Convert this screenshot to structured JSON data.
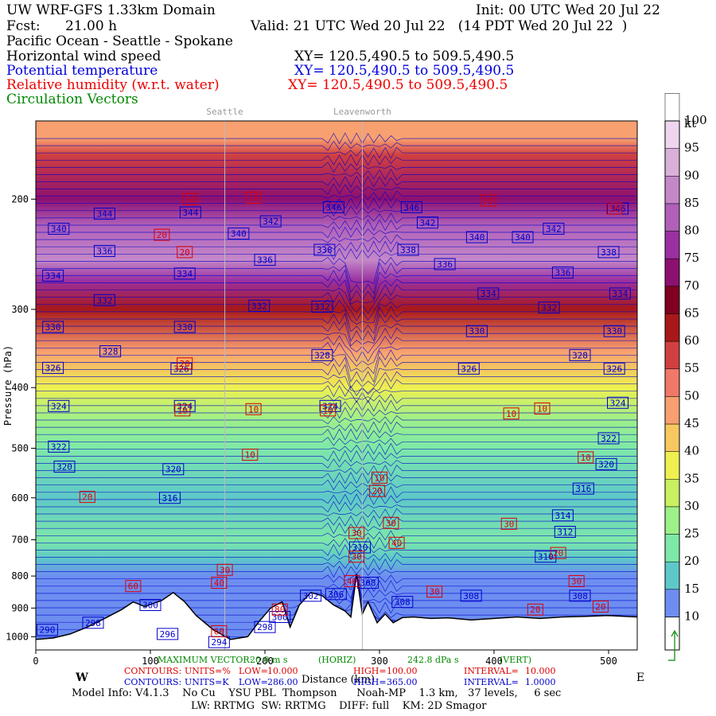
{
  "header": {
    "model": "UW WRF-GFS 1.33km Domain",
    "init": "Init: 00 UTC Wed 20 Jul 22",
    "fcst_label": "Fcst:",
    "fcst_value": "21.00 h",
    "valid": "Valid: 21 UTC Wed 20 Jul 22   (14 PDT Wed 20 Jul 22  )",
    "region": "Pacific Ocean - Seattle - Spokane",
    "field_wind": "Horizontal wind speed",
    "field_theta": "Potential temperature",
    "field_rh": "Relative humidity (w.r.t. water)",
    "field_vectors": "Circulation Vectors",
    "xy_wind": "XY= 120.5,490.5 to 509.5,490.5",
    "xy_theta": "XY= 120.5,490.5 to 509.5,490.5",
    "xy_rh": "XY= 120.5,490.5 to 509.5,490.5"
  },
  "colors": {
    "theta": "#0000cc",
    "rh": "#dd0000",
    "vectors": "#008800",
    "terrain": "#000000",
    "marker_lines": "#bbbbbb"
  },
  "chart_data": {
    "type": "heatmap",
    "subtype": "vertical cross-section",
    "x": {
      "label": "Distance (km)",
      "range": [
        0,
        525
      ],
      "ticks": [
        0,
        100,
        200,
        300,
        400,
        500
      ],
      "left_dir": "W",
      "right_dir": "E"
    },
    "y": {
      "label": "Pressure (hPa)",
      "range": [
        1050,
        150
      ],
      "scale": "log",
      "ticks": [
        200,
        300,
        400,
        500,
        600,
        700,
        800,
        900,
        1000
      ]
    },
    "markers": [
      {
        "label": "Seattle",
        "x": 165
      },
      {
        "label": "Leavenworth",
        "x": 285
      }
    ],
    "colorbar": {
      "unit": "kt",
      "levels": [
        10,
        15,
        20,
        25,
        30,
        35,
        40,
        45,
        50,
        55,
        60,
        65,
        70,
        75,
        80,
        85,
        90,
        95,
        100
      ],
      "colors": [
        "#6d8ef0",
        "#5ec8c8",
        "#7ee8a8",
        "#9ef088",
        "#c8f060",
        "#eef050",
        "#f8c860",
        "#f8a070",
        "#f07868",
        "#d04040",
        "#a81818",
        "#800020",
        "#8c1070",
        "#9a30a0",
        "#b060b8",
        "#c488c8",
        "#d8b0d8",
        "#eed6ee",
        "#ffffff"
      ]
    },
    "wind_speed_profile": {
      "pressure": [
        1000,
        900,
        800,
        750,
        700,
        600,
        500,
        450,
        400,
        350,
        300,
        270,
        250,
        220,
        200,
        170,
        160
      ],
      "speed_kt": [
        10,
        10,
        12,
        18,
        20,
        19,
        23,
        28,
        38,
        48,
        62,
        75,
        85,
        80,
        70,
        55,
        45
      ]
    },
    "terrain": {
      "x": [
        0,
        15,
        30,
        45,
        60,
        75,
        85,
        95,
        110,
        120,
        130,
        140,
        155,
        170,
        185,
        195,
        205,
        215,
        222,
        230,
        240,
        250,
        260,
        270,
        275,
        280,
        285,
        290,
        298,
        305,
        312,
        320,
        330,
        345,
        360,
        380,
        400,
        420,
        440,
        460,
        480,
        500,
        525
      ],
      "p": [
        1010,
        1005,
        990,
        965,
        935,
        905,
        880,
        895,
        875,
        850,
        880,
        925,
        975,
        1010,
        1000,
        945,
        900,
        880,
        965,
        890,
        850,
        860,
        890,
        910,
        930,
        795,
        920,
        880,
        950,
        920,
        950,
        932,
        930,
        935,
        933,
        940,
        935,
        930,
        935,
        930,
        928,
        925,
        930
      ]
    },
    "theta_contours": {
      "units": "K",
      "low": "286.00",
      "high": "365.00",
      "interval": "1.0000",
      "labels": [
        {
          "x": 10,
          "p": 975,
          "v": "290"
        },
        {
          "x": 50,
          "p": 950,
          "v": "298"
        },
        {
          "x": 100,
          "p": 890,
          "v": "300"
        },
        {
          "x": 115,
          "p": 990,
          "v": "296"
        },
        {
          "x": 160,
          "p": 1020,
          "v": "294"
        },
        {
          "x": 200,
          "p": 965,
          "v": "298"
        },
        {
          "x": 213,
          "p": 930,
          "v": "300"
        },
        {
          "x": 240,
          "p": 860,
          "v": "302"
        },
        {
          "x": 262,
          "p": 855,
          "v": "306"
        },
        {
          "x": 290,
          "p": 820,
          "v": "308"
        },
        {
          "x": 320,
          "p": 880,
          "v": "308"
        },
        {
          "x": 380,
          "p": 860,
          "v": "308"
        },
        {
          "x": 475,
          "p": 860,
          "v": "308"
        },
        {
          "x": 445,
          "p": 745,
          "v": "310"
        },
        {
          "x": 462,
          "p": 680,
          "v": "312"
        },
        {
          "x": 283,
          "p": 720,
          "v": "310"
        },
        {
          "x": 460,
          "p": 640,
          "v": "314"
        },
        {
          "x": 478,
          "p": 580,
          "v": "316"
        },
        {
          "x": 117,
          "p": 600,
          "v": "316"
        },
        {
          "x": 25,
          "p": 535,
          "v": "320"
        },
        {
          "x": 120,
          "p": 540,
          "v": "320"
        },
        {
          "x": 498,
          "p": 530,
          "v": "320"
        },
        {
          "x": 20,
          "p": 497,
          "v": "322"
        },
        {
          "x": 500,
          "p": 482,
          "v": "322"
        },
        {
          "x": 20,
          "p": 428,
          "v": "324"
        },
        {
          "x": 130,
          "p": 428,
          "v": "324"
        },
        {
          "x": 257,
          "p": 428,
          "v": "324"
        },
        {
          "x": 508,
          "p": 423,
          "v": "324"
        },
        {
          "x": 15,
          "p": 372,
          "v": "326"
        },
        {
          "x": 127,
          "p": 373,
          "v": "326"
        },
        {
          "x": 378,
          "p": 373,
          "v": "326"
        },
        {
          "x": 505,
          "p": 373,
          "v": "326"
        },
        {
          "x": 65,
          "p": 350,
          "v": "328"
        },
        {
          "x": 250,
          "p": 355,
          "v": "328"
        },
        {
          "x": 475,
          "p": 355,
          "v": "328"
        },
        {
          "x": 15,
          "p": 320,
          "v": "330"
        },
        {
          "x": 130,
          "p": 320,
          "v": "330"
        },
        {
          "x": 385,
          "p": 325,
          "v": "330"
        },
        {
          "x": 505,
          "p": 325,
          "v": "330"
        },
        {
          "x": 195,
          "p": 296,
          "v": "332"
        },
        {
          "x": 60,
          "p": 290,
          "v": "332"
        },
        {
          "x": 250,
          "p": 297,
          "v": "332"
        },
        {
          "x": 448,
          "p": 298,
          "v": "332"
        },
        {
          "x": 395,
          "p": 283,
          "v": "334"
        },
        {
          "x": 510,
          "p": 283,
          "v": "334"
        },
        {
          "x": 15,
          "p": 265,
          "v": "334"
        },
        {
          "x": 130,
          "p": 263,
          "v": "334"
        },
        {
          "x": 460,
          "p": 262,
          "v": "336"
        },
        {
          "x": 200,
          "p": 250,
          "v": "336"
        },
        {
          "x": 357,
          "p": 254,
          "v": "336"
        },
        {
          "x": 60,
          "p": 242,
          "v": "336"
        },
        {
          "x": 252,
          "p": 241,
          "v": "338"
        },
        {
          "x": 325,
          "p": 241,
          "v": "338"
        },
        {
          "x": 500,
          "p": 243,
          "v": "338"
        },
        {
          "x": 177,
          "p": 227,
          "v": "340"
        },
        {
          "x": 385,
          "p": 230,
          "v": "340"
        },
        {
          "x": 425,
          "p": 230,
          "v": "340"
        },
        {
          "x": 20,
          "p": 223,
          "v": "340"
        },
        {
          "x": 205,
          "p": 217,
          "v": "342"
        },
        {
          "x": 342,
          "p": 218,
          "v": "342"
        },
        {
          "x": 452,
          "p": 223,
          "v": "342"
        },
        {
          "x": 60,
          "p": 211,
          "v": "344"
        },
        {
          "x": 135,
          "p": 210,
          "v": "344"
        },
        {
          "x": 260,
          "p": 206,
          "v": "346"
        },
        {
          "x": 328,
          "p": 206,
          "v": "346"
        },
        {
          "x": 508,
          "p": 207,
          "v": "346"
        }
      ]
    },
    "rh_contours": {
      "units": "%",
      "low": "10.000",
      "high": "100.00",
      "interval": "10.000",
      "labels": [
        {
          "x": 135,
          "p": 200,
          "v": "10"
        },
        {
          "x": 190,
          "p": 199,
          "v": "10"
        },
        {
          "x": 395,
          "p": 201,
          "v": "10"
        },
        {
          "x": 505,
          "p": 207,
          "v": "10"
        },
        {
          "x": 110,
          "p": 228,
          "v": "20"
        },
        {
          "x": 130,
          "p": 243,
          "v": "20"
        },
        {
          "x": 130,
          "p": 366,
          "v": "20"
        },
        {
          "x": 190,
          "p": 433,
          "v": "10"
        },
        {
          "x": 128,
          "p": 435,
          "v": "10"
        },
        {
          "x": 255,
          "p": 435,
          "v": "10"
        },
        {
          "x": 415,
          "p": 440,
          "v": "10"
        },
        {
          "x": 442,
          "p": 432,
          "v": "10"
        },
        {
          "x": 187,
          "p": 512,
          "v": "10"
        },
        {
          "x": 480,
          "p": 517,
          "v": "10"
        },
        {
          "x": 300,
          "p": 557,
          "v": "10"
        },
        {
          "x": 298,
          "p": 585,
          "v": "20"
        },
        {
          "x": 310,
          "p": 658,
          "v": "30"
        },
        {
          "x": 280,
          "p": 683,
          "v": "30"
        },
        {
          "x": 315,
          "p": 708,
          "v": "40"
        },
        {
          "x": 280,
          "p": 745,
          "v": "30"
        },
        {
          "x": 45,
          "p": 598,
          "v": "20"
        },
        {
          "x": 413,
          "p": 660,
          "v": "30"
        },
        {
          "x": 456,
          "p": 735,
          "v": "20"
        },
        {
          "x": 165,
          "p": 782,
          "v": "30"
        },
        {
          "x": 160,
          "p": 820,
          "v": "40"
        },
        {
          "x": 85,
          "p": 830,
          "v": "60"
        },
        {
          "x": 276,
          "p": 815,
          "v": "40"
        },
        {
          "x": 348,
          "p": 847,
          "v": "30"
        },
        {
          "x": 472,
          "p": 815,
          "v": "30"
        },
        {
          "x": 213,
          "p": 905,
          "v": "80"
        },
        {
          "x": 160,
          "p": 980,
          "v": "60"
        },
        {
          "x": 436,
          "p": 905,
          "v": "20"
        },
        {
          "x": 493,
          "p": 895,
          "v": "20"
        }
      ]
    },
    "vectors": {
      "max_label": "MAXIMUM VECTOR:",
      "max_horiz": "20.9 m s",
      "horiz_label": "(HORIZ)",
      "max_vert": "242.8 dPa s",
      "vert_label": "(VERT)"
    }
  },
  "footer": {
    "contours_rh_label": "CONTOURS:",
    "contours_rh_units": "UNITS=%",
    "contours_rh_low": "LOW=",
    "contours_rh_high": "HIGH=",
    "contours_rh_interval": "INTERVAL=",
    "contours_theta_label": "CONTOURS:",
    "contours_theta_units": "UNITS=K",
    "contours_theta_low": "LOW=",
    "contours_theta_high": "HIGH=",
    "contours_theta_interval": "INTERVAL=",
    "model_info": "Model Info: V4.1.3    No Cu    YSU PBL  Thompson      Noah-MP    1.3 km,   37 levels,     6 sec",
    "model_info2": "LW: RRTMG  SW: RRTMG    DIFF: full    KM: 2D Smagor"
  }
}
